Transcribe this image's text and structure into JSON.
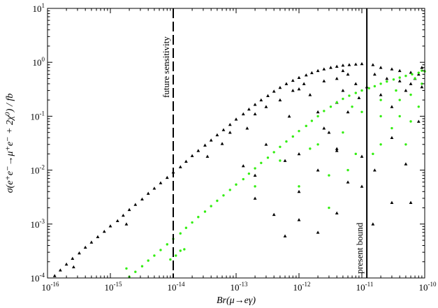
{
  "chart_data": {
    "type": "scatter",
    "xlabel": "Br(μ→eγ)",
    "ylabel": "σ(e⁺e⁻→μ⁺e⁻ + 2χ⁰) / fb",
    "x_scale": "log",
    "y_scale": "log",
    "xlim": [
      1e-16,
      1e-10
    ],
    "ylim": [
      0.0001,
      10
    ],
    "grid": false,
    "legend": "none",
    "x_tick_labels": [
      {
        "base": "10",
        "exp": "-16",
        "value": 1e-16
      },
      {
        "base": "10",
        "exp": "-15",
        "value": 1e-15
      },
      {
        "base": "10",
        "exp": "-14",
        "value": 1e-14
      },
      {
        "base": "10",
        "exp": "-13",
        "value": 1e-13
      },
      {
        "base": "10",
        "exp": "-12",
        "value": 1e-12
      },
      {
        "base": "10",
        "exp": "-11",
        "value": 1e-11
      },
      {
        "base": "10",
        "exp": "-10",
        "value": 1e-10
      }
    ],
    "y_tick_labels": [
      {
        "base": "10",
        "exp": "-4",
        "value": 0.0001
      },
      {
        "base": "10",
        "exp": "-3",
        "value": 0.001
      },
      {
        "base": "10",
        "exp": "-2",
        "value": 0.01
      },
      {
        "base": "10",
        "exp": "-1",
        "value": 0.1
      },
      {
        "base": "10",
        "exp": "0",
        "value": 1
      },
      {
        "base": "10",
        "exp": "1",
        "value": 10
      }
    ],
    "reference_lines": [
      {
        "label": "future sensitivity",
        "x": 1e-14,
        "style": "dashed"
      },
      {
        "label": "present bound",
        "x": 1.2e-11,
        "style": "solid"
      }
    ],
    "series": [
      {
        "marker": "triangle",
        "color": "#000000",
        "points": [
          [
            1.3e-16,
            0.00011
          ],
          [
            1.6e-16,
            0.00014
          ],
          [
            2e-16,
            0.00018
          ],
          [
            2.5e-16,
            0.00023
          ],
          [
            3.2e-16,
            0.00029
          ],
          [
            4e-16,
            0.00037
          ],
          [
            5e-16,
            0.00046
          ],
          [
            6.3e-16,
            0.00058
          ],
          [
            8e-16,
            0.00073
          ],
          [
            1e-15,
            0.00092
          ],
          [
            1.3e-15,
            0.00115
          ],
          [
            1.6e-15,
            0.00145
          ],
          [
            2e-15,
            0.00185
          ],
          [
            2.5e-15,
            0.0023
          ],
          [
            3.2e-15,
            0.0029
          ],
          [
            4e-15,
            0.0037
          ],
          [
            5e-15,
            0.0046
          ],
          [
            6.3e-15,
            0.0058
          ],
          [
            8e-15,
            0.0073
          ],
          [
            1e-14,
            0.0092
          ],
          [
            1.3e-14,
            0.0115
          ],
          [
            1.6e-14,
            0.0145
          ],
          [
            2e-14,
            0.0185
          ],
          [
            2.5e-14,
            0.023
          ],
          [
            3.2e-14,
            0.029
          ],
          [
            4e-14,
            0.036
          ],
          [
            5e-14,
            0.045
          ],
          [
            6.3e-14,
            0.056
          ],
          [
            8e-14,
            0.07
          ],
          [
            1e-13,
            0.088
          ],
          [
            1.3e-13,
            0.11
          ],
          [
            1.6e-13,
            0.135
          ],
          [
            2e-13,
            0.165
          ],
          [
            2.5e-13,
            0.2
          ],
          [
            3.2e-13,
            0.24
          ],
          [
            4e-13,
            0.29
          ],
          [
            5e-13,
            0.34
          ],
          [
            6.3e-13,
            0.4
          ],
          [
            8e-13,
            0.46
          ],
          [
            1e-12,
            0.52
          ],
          [
            1.3e-12,
            0.58
          ],
          [
            1.6e-12,
            0.64
          ],
          [
            2e-12,
            0.7
          ],
          [
            2.5e-12,
            0.75
          ],
          [
            3.2e-12,
            0.8
          ],
          [
            4e-12,
            0.84
          ],
          [
            5e-12,
            0.88
          ],
          [
            6.3e-12,
            0.9
          ],
          [
            8e-12,
            0.92
          ],
          [
            1e-11,
            0.94
          ],
          [
            1.5e-11,
            0.9
          ],
          [
            2e-11,
            0.8
          ],
          [
            3e-11,
            0.75
          ],
          [
            4e-11,
            0.7
          ],
          [
            6e-11,
            0.65
          ],
          [
            8e-11,
            0.6
          ],
          [
            2.6e-16,
            0.00016
          ],
          [
            1.8e-15,
            0.001
          ],
          [
            6e-14,
            0.031
          ],
          [
            2e-13,
            0.11
          ],
          [
            5e-13,
            0.2
          ],
          [
            1e-12,
            0.32
          ],
          [
            2e-12,
            0.12
          ],
          [
            5e-12,
            0.3
          ],
          [
            7e-13,
            0.1
          ],
          [
            3e-12,
            0.05
          ],
          [
            8e-12,
            0.4
          ],
          [
            1.5e-12,
            0.25
          ],
          [
            2.5e-12,
            0.06
          ],
          [
            4e-12,
            0.18
          ],
          [
            6e-12,
            0.12
          ],
          [
            9e-12,
            0.22
          ],
          [
            1.2e-11,
            0.35
          ],
          [
            2e-11,
            0.25
          ],
          [
            3e-11,
            0.15
          ],
          [
            5e-11,
            0.3
          ],
          [
            7e-11,
            0.5
          ],
          [
            9e-11,
            0.35
          ],
          [
            2e-13,
            0.008
          ],
          [
            1.3e-13,
            0.012
          ],
          [
            3e-13,
            0.03
          ],
          [
            6e-13,
            0.015
          ],
          [
            1e-12,
            0.004
          ],
          [
            1e-12,
            0.02
          ],
          [
            2e-12,
            0.01
          ],
          [
            4e-12,
            0.025
          ],
          [
            6e-12,
            0.006
          ],
          [
            1e-11,
            0.018
          ],
          [
            1.6e-11,
            0.01
          ],
          [
            3e-11,
            0.04
          ],
          [
            5e-11,
            0.013
          ],
          [
            3e-11,
            0.0025
          ],
          [
            8e-11,
            0.08
          ],
          [
            4e-13,
            0.0015
          ],
          [
            6e-13,
            0.0006
          ],
          [
            1e-12,
            0.0012
          ],
          [
            2e-12,
            0.0007
          ],
          [
            4e-12,
            0.0016
          ],
          [
            4e-12,
            0.023
          ],
          [
            1e-11,
            0.005
          ],
          [
            1.5e-11,
            0.001
          ],
          [
            6e-11,
            0.0025
          ],
          [
            2e-13,
            0.003
          ],
          [
            3.5e-14,
            0.018
          ],
          [
            8e-14,
            0.05
          ],
          [
            1.5e-13,
            0.06
          ],
          [
            3e-13,
            0.15
          ],
          [
            6e-12,
            0.6
          ],
          [
            4e-12,
            0.5
          ],
          [
            2.5e-12,
            0.45
          ],
          [
            1.2e-12,
            0.4
          ],
          [
            8e-13,
            0.3
          ],
          [
            1.6e-11,
            0.6
          ],
          [
            2.5e-11,
            0.5
          ],
          [
            4e-11,
            0.45
          ],
          [
            6e-11,
            0.4
          ],
          [
            9e-11,
            0.8
          ],
          [
            5e-12,
            0.7
          ]
        ]
      },
      {
        "marker": "circle",
        "color": "#33ee11",
        "points": [
          [
            2e-15,
            0.000105
          ],
          [
            2.5e-15,
            0.00013
          ],
          [
            3.2e-15,
            0.000165
          ],
          [
            4e-15,
            0.00021
          ],
          [
            5e-15,
            0.00026
          ],
          [
            6.3e-15,
            0.00033
          ],
          [
            8e-15,
            0.00042
          ],
          [
            1e-14,
            0.00053
          ],
          [
            1.3e-14,
            0.00067
          ],
          [
            1.6e-14,
            0.00085
          ],
          [
            2e-14,
            0.00107
          ],
          [
            2.5e-14,
            0.00135
          ],
          [
            3.2e-14,
            0.0017
          ],
          [
            4e-14,
            0.00215
          ],
          [
            5e-14,
            0.0027
          ],
          [
            6.3e-14,
            0.0034
          ],
          [
            8e-14,
            0.0043
          ],
          [
            1e-13,
            0.0054
          ],
          [
            1.3e-13,
            0.0068
          ],
          [
            1.6e-13,
            0.0086
          ],
          [
            2e-13,
            0.0108
          ],
          [
            2.5e-13,
            0.0136
          ],
          [
            3.2e-13,
            0.017
          ],
          [
            4e-13,
            0.0215
          ],
          [
            5e-13,
            0.027
          ],
          [
            6.3e-13,
            0.034
          ],
          [
            8e-13,
            0.042
          ],
          [
            1e-12,
            0.053
          ],
          [
            1.3e-12,
            0.066
          ],
          [
            1.6e-12,
            0.082
          ],
          [
            2e-12,
            0.1
          ],
          [
            2.5e-12,
            0.125
          ],
          [
            3.2e-12,
            0.15
          ],
          [
            4e-12,
            0.18
          ],
          [
            5e-12,
            0.21
          ],
          [
            6.3e-12,
            0.24
          ],
          [
            8e-12,
            0.27
          ],
          [
            1e-11,
            0.3
          ],
          [
            1.3e-11,
            0.33
          ],
          [
            1.6e-11,
            0.36
          ],
          [
            2e-11,
            0.4
          ],
          [
            2.5e-11,
            0.44
          ],
          [
            3.2e-11,
            0.48
          ],
          [
            4e-11,
            0.52
          ],
          [
            5e-11,
            0.56
          ],
          [
            6.3e-11,
            0.6
          ],
          [
            8e-11,
            0.64
          ],
          [
            1e-10,
            0.68
          ],
          [
            1.1e-14,
            0.00026
          ],
          [
            1.3e-14,
            0.00032
          ],
          [
            9e-15,
            0.00022
          ],
          [
            1.5e-14,
            0.00034
          ],
          [
            1.8e-15,
            0.00015
          ],
          [
            2e-12,
            0.03
          ],
          [
            5e-12,
            0.05
          ],
          [
            1e-11,
            0.12
          ],
          [
            2e-11,
            0.1
          ],
          [
            4e-11,
            0.2
          ],
          [
            8e-11,
            0.15
          ],
          [
            3e-12,
            0.008
          ],
          [
            8e-12,
            0.02
          ],
          [
            1.5e-11,
            0.02
          ],
          [
            3e-11,
            0.06
          ],
          [
            6e-11,
            0.08
          ],
          [
            1e-12,
            0.005
          ],
          [
            3e-12,
            0.002
          ],
          [
            6e-12,
            0.01
          ],
          [
            2e-11,
            0.03
          ],
          [
            5e-11,
            0.03
          ],
          [
            2e-13,
            0.005
          ],
          [
            5e-13,
            0.015
          ],
          [
            1.5e-12,
            0.025
          ],
          [
            7e-12,
            0.15
          ],
          [
            9e-11,
            0.4
          ],
          [
            3.5e-11,
            0.3
          ],
          [
            6e-11,
            0.25
          ],
          [
            7e-11,
            0.5
          ],
          [
            9e-11,
            0.7
          ],
          [
            4e-11,
            0.1
          ],
          [
            2e-11,
            0.2
          ]
        ]
      }
    ]
  }
}
